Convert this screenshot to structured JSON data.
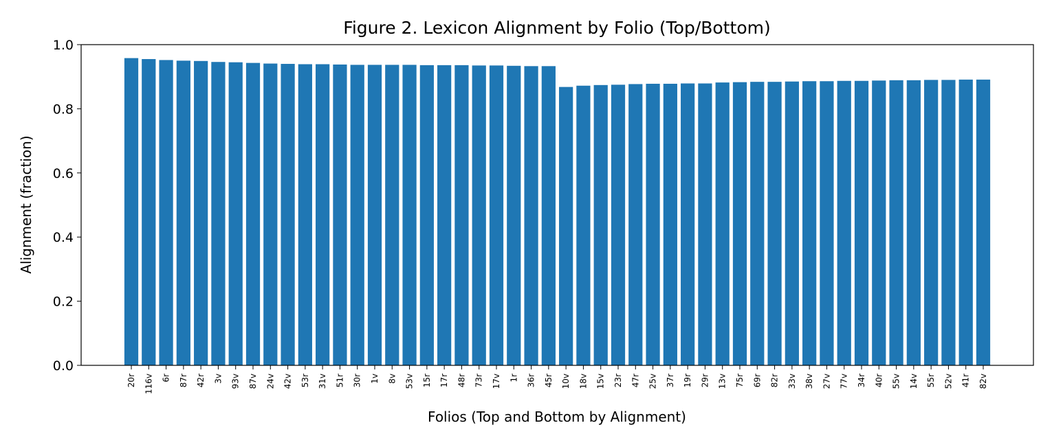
{
  "chart_data": {
    "type": "bar",
    "title": "Figure 2. Lexicon Alignment by Folio (Top/Bottom)",
    "xlabel": "Folios (Top and Bottom by Alignment)",
    "ylabel": "Alignment (fraction)",
    "ylim": [
      0,
      1.0
    ],
    "yticks": [
      "0.0",
      "0.2",
      "0.4",
      "0.6",
      "0.8",
      "1.0"
    ],
    "grid": false,
    "bar_color": "#1f77b4",
    "categories": [
      "20r",
      "116v",
      "6r",
      "87r",
      "42r",
      "3v",
      "93v",
      "87v",
      "24v",
      "42v",
      "53r",
      "31v",
      "51r",
      "30r",
      "1v",
      "8v",
      "53v",
      "15r",
      "17r",
      "48r",
      "73r",
      "17v",
      "1r",
      "36r",
      "45r",
      "10v",
      "18v",
      "15v",
      "23r",
      "47r",
      "25v",
      "37r",
      "19r",
      "29r",
      "13v",
      "75r",
      "69r",
      "82r",
      "33v",
      "38v",
      "27v",
      "77v",
      "34r",
      "40r",
      "55v",
      "14v",
      "55r",
      "52v",
      "41r",
      "82v"
    ],
    "values": [
      0.958,
      0.955,
      0.952,
      0.95,
      0.949,
      0.946,
      0.945,
      0.943,
      0.941,
      0.94,
      0.939,
      0.939,
      0.938,
      0.937,
      0.937,
      0.937,
      0.937,
      0.936,
      0.936,
      0.936,
      0.935,
      0.935,
      0.934,
      0.933,
      0.933,
      0.868,
      0.872,
      0.874,
      0.875,
      0.877,
      0.878,
      0.878,
      0.879,
      0.879,
      0.882,
      0.883,
      0.884,
      0.884,
      0.885,
      0.886,
      0.886,
      0.887,
      0.887,
      0.888,
      0.889,
      0.889,
      0.89,
      0.89,
      0.891,
      0.891
    ]
  }
}
